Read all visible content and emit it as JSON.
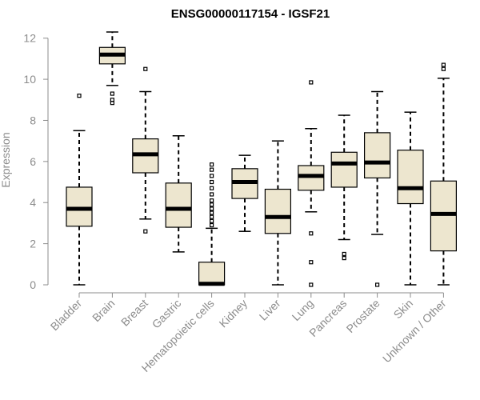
{
  "chart_data": {
    "type": "boxplot",
    "title": "ENSG00000117154 - IGSF21",
    "xlabel": "",
    "ylabel": "Expression",
    "ylim": [
      0,
      12.3
    ],
    "yticks": [
      0,
      2,
      4,
      6,
      8,
      10,
      12
    ],
    "grid": false,
    "colors": {
      "box_fill": "#ede6cf",
      "box_stroke": "#000000",
      "axis": "#8c8c8c",
      "text": "#8c8c8c"
    },
    "categories": [
      "Bladder",
      "Brain",
      "Breast",
      "Gastric",
      "Hematopoietic cells",
      "Kidney",
      "Liver",
      "Lung",
      "Pancreas",
      "Prostate",
      "Skin",
      "Unknown / Other"
    ],
    "boxes": [
      {
        "name": "Bladder",
        "whisker_low": 0.0,
        "q1": 2.85,
        "median": 3.7,
        "q3": 4.75,
        "whisker_high": 7.5,
        "outliers": [
          9.2
        ]
      },
      {
        "name": "Brain",
        "whisker_low": 9.7,
        "q1": 10.75,
        "median": 11.2,
        "q3": 11.55,
        "whisker_high": 12.3,
        "outliers": [
          9.3,
          9.0,
          8.85
        ]
      },
      {
        "name": "Breast",
        "whisker_low": 3.2,
        "q1": 5.45,
        "median": 6.35,
        "q3": 7.1,
        "whisker_high": 9.4,
        "outliers": [
          10.5,
          2.6
        ]
      },
      {
        "name": "Gastric",
        "whisker_low": 1.6,
        "q1": 2.8,
        "median": 3.7,
        "q3": 4.95,
        "whisker_high": 7.25,
        "outliers": []
      },
      {
        "name": "Hematopoietic cells",
        "whisker_low": 0.0,
        "q1": 0.0,
        "median": 0.05,
        "q3": 1.1,
        "whisker_high": 2.75,
        "outliers": [
          2.9,
          3.1,
          3.3,
          3.5,
          3.7,
          3.9,
          4.1,
          4.4,
          4.7,
          5.0,
          5.3,
          5.6,
          5.85
        ]
      },
      {
        "name": "Kidney",
        "whisker_low": 2.6,
        "q1": 4.2,
        "median": 5.0,
        "q3": 5.65,
        "whisker_high": 6.3,
        "outliers": []
      },
      {
        "name": "Liver",
        "whisker_low": 0.0,
        "q1": 2.5,
        "median": 3.3,
        "q3": 4.65,
        "whisker_high": 7.0,
        "outliers": []
      },
      {
        "name": "Lung",
        "whisker_low": 3.55,
        "q1": 4.6,
        "median": 5.3,
        "q3": 5.8,
        "whisker_high": 7.6,
        "outliers": [
          9.85,
          2.5,
          1.1,
          0.0
        ]
      },
      {
        "name": "Pancreas",
        "whisker_low": 2.2,
        "q1": 4.75,
        "median": 5.9,
        "q3": 6.45,
        "whisker_high": 8.25,
        "outliers": [
          1.5,
          1.3
        ]
      },
      {
        "name": "Prostate",
        "whisker_low": 2.45,
        "q1": 5.2,
        "median": 5.95,
        "q3": 7.4,
        "whisker_high": 9.4,
        "outliers": [
          0.0
        ]
      },
      {
        "name": "Skin",
        "whisker_low": 0.0,
        "q1": 3.95,
        "median": 4.7,
        "q3": 6.55,
        "whisker_high": 8.4,
        "outliers": []
      },
      {
        "name": "Unknown / Other",
        "whisker_low": 0.0,
        "q1": 1.65,
        "median": 3.45,
        "q3": 5.05,
        "whisker_high": 10.05,
        "outliers": [
          10.5,
          10.7
        ]
      }
    ]
  }
}
